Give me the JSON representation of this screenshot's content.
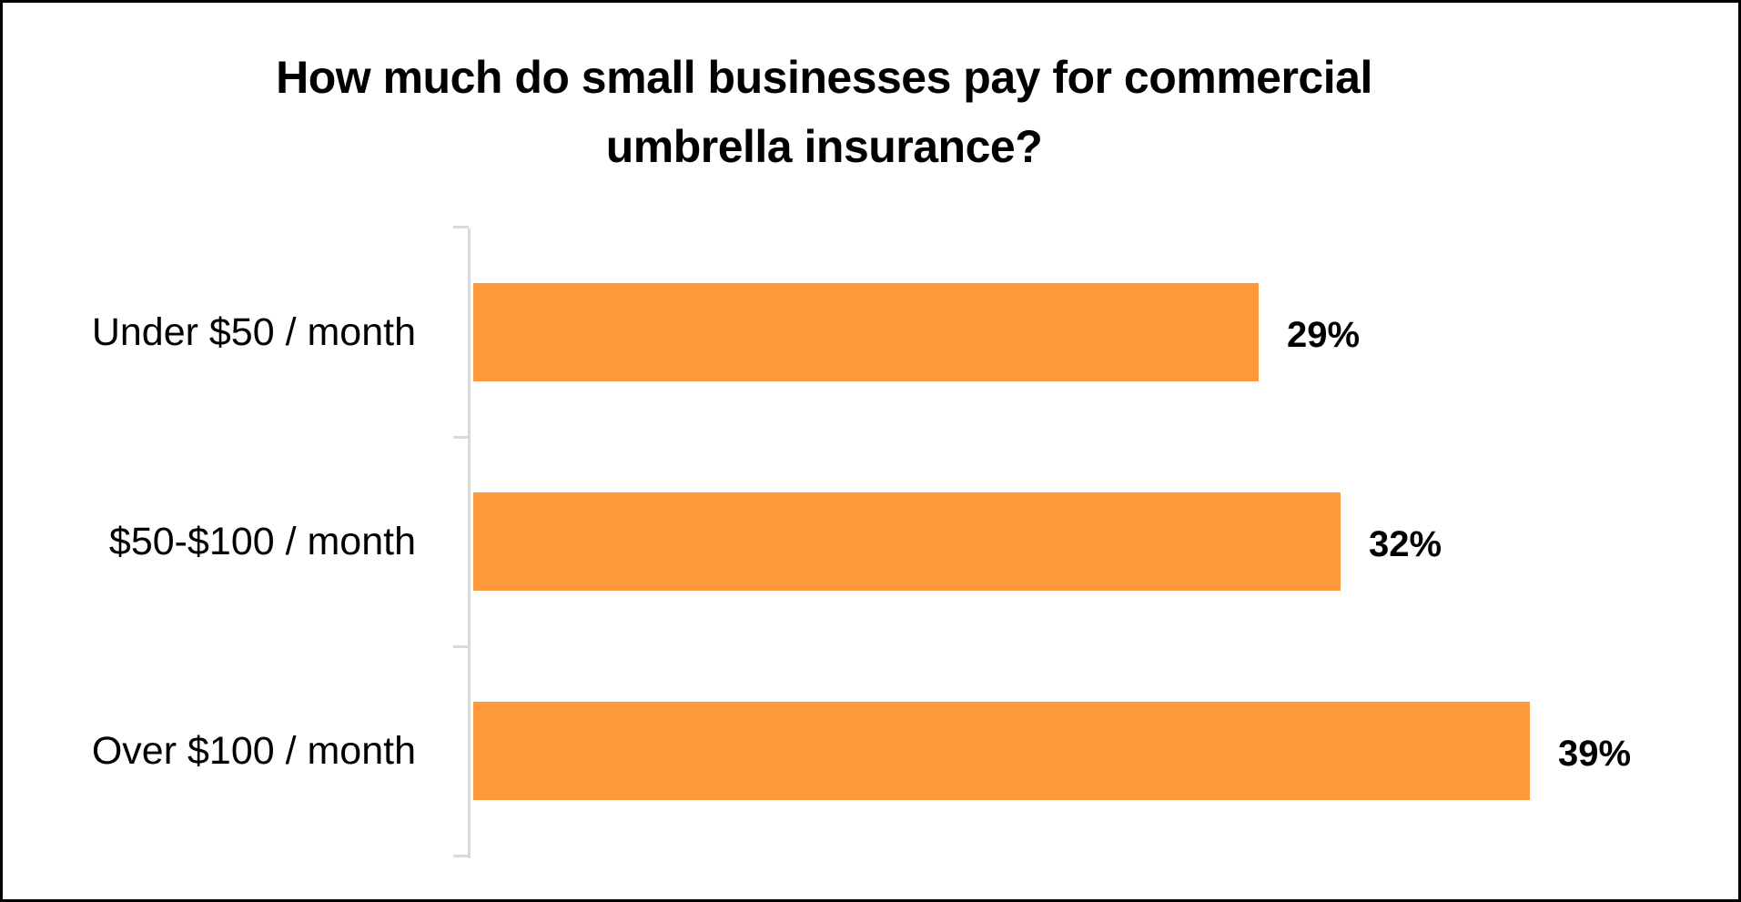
{
  "chart_data": {
    "type": "bar",
    "orientation": "horizontal",
    "title": "How much do small businesses pay for commercial umbrella insurance?",
    "title_lines": [
      "How much do small businesses pay for commercial",
      "umbrella insurance?"
    ],
    "categories": [
      "Under $50 / month",
      "$50-$100 / month",
      "Over $100 / month"
    ],
    "values": [
      29,
      32,
      39
    ],
    "value_labels": [
      "29%",
      "32%",
      "39%"
    ],
    "unit": "%",
    "xlabel": "",
    "ylabel": "",
    "xlim": [
      0,
      39
    ],
    "grid": false,
    "legend": "none",
    "bar_color": "#FF9A3C"
  },
  "style": {
    "bar_color": "#FF9A3C",
    "axis_color": "#D9D9D9",
    "border_color": "#000000"
  }
}
